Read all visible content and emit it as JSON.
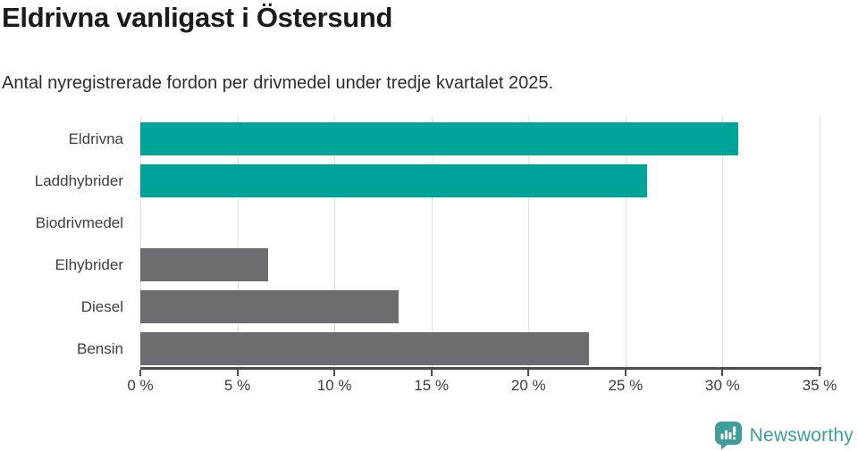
{
  "title": "Eldrivna vanligast i Östersund",
  "subtitle": "Antal nyregistrerade fordon per drivmedel under tredje kvartalet 2025.",
  "chart_data": {
    "type": "bar",
    "orientation": "horizontal",
    "categories": [
      "Eldrivna",
      "Laddhybrider",
      "Biodrivmedel",
      "Elhybrider",
      "Diesel",
      "Bensin"
    ],
    "values": [
      30.8,
      26.1,
      0,
      6.6,
      13.3,
      23.1
    ],
    "bar_colors": [
      "#00a39a",
      "#00a39a",
      "#00a39a",
      "#6c6c71",
      "#6c6c71",
      "#6c6c71"
    ],
    "x_tick_labels": [
      "0 %",
      "5 %",
      "10 %",
      "15 %",
      "20 %",
      "25 %",
      "30 %",
      "35 %"
    ],
    "x_tick_values": [
      0,
      5,
      10,
      15,
      20,
      25,
      30,
      35
    ],
    "xlim": [
      0,
      35
    ],
    "xlabel": "",
    "ylabel": "",
    "grid": "vertical",
    "legend": "none",
    "value_labels": "none"
  },
  "colors": {
    "accent_teal": "#00a39a",
    "neutral_gray": "#6c6c71",
    "gridline": "#e1e1e1",
    "axis": "#4d4d4d",
    "title_text": "#1a1a18",
    "label_text": "#3d3d3d",
    "brand_teal": "#3f9e9b"
  },
  "branding": {
    "logo_text": "Newsworthy",
    "logo_icon": "newsworthy-speech-bubble-chart-icon"
  }
}
